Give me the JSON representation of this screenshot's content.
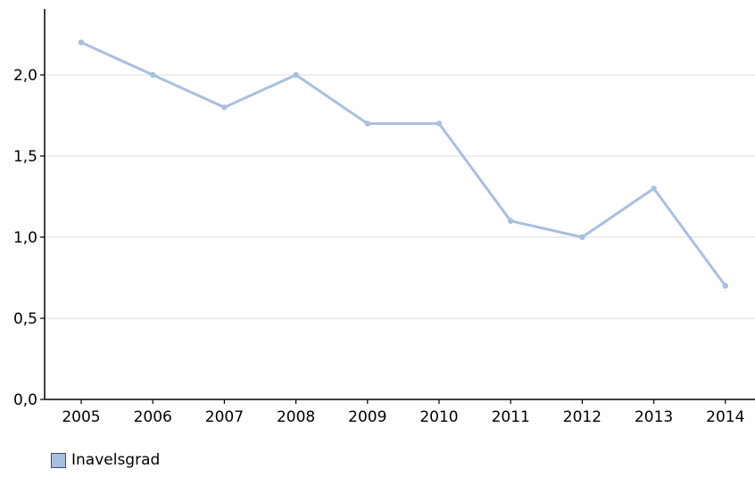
{
  "chart_data": {
    "type": "line",
    "title": "",
    "xlabel": "",
    "ylabel": "",
    "categories": [
      "2005",
      "2006",
      "2007",
      "2008",
      "2009",
      "2010",
      "2011",
      "2012",
      "2013",
      "2014"
    ],
    "series": [
      {
        "name": "Inavelsgrad",
        "values": [
          2.2,
          2.0,
          1.8,
          2.0,
          1.7,
          1.7,
          1.1,
          1.0,
          1.3,
          0.7
        ]
      }
    ],
    "ylim": [
      0,
      2.3
    ],
    "y_ticks": [
      0,
      0.5,
      1.0,
      1.5,
      2.0
    ],
    "y_tick_labels": [
      "0,0",
      "0,5",
      "1,0",
      "1,5",
      "2,0"
    ],
    "grid": "horizontal",
    "legend_position": "bottom-left",
    "colors": {
      "series": "#a9bfdf",
      "grid": "#e3e3e3",
      "axis": "#000000",
      "legend_swatch": "#a9bfdf"
    }
  }
}
